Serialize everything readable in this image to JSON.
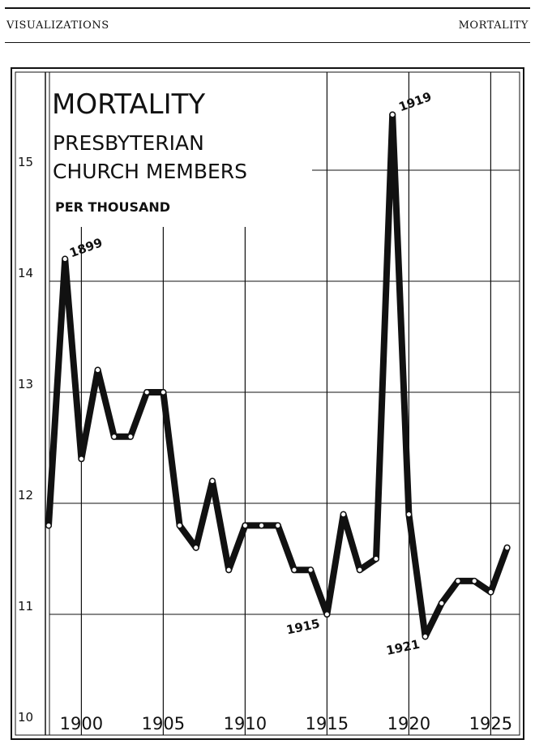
{
  "header": {
    "left": "VISUALIZATIONS",
    "right": "MORTALITY"
  },
  "chart_data": {
    "type": "line",
    "title": "MORTALITY",
    "subtitle_lines": [
      "PRESBYTERIAN",
      "CHURCH MEMBERS"
    ],
    "unit_label": "PER THOUSAND",
    "y_ticks": [
      10,
      11,
      12,
      13,
      14,
      15
    ],
    "y_tick_labels": [
      "10",
      "11",
      "12",
      "13",
      "14",
      "15"
    ],
    "x_ticks": [
      1900,
      1905,
      1910,
      1915,
      1920,
      1925
    ],
    "x_tick_labels": [
      "1900",
      "1905",
      "1910",
      "1915",
      "1920",
      "1925"
    ],
    "xlim": [
      1898,
      1926.5
    ],
    "ylim": [
      10,
      15.6
    ],
    "grid": true,
    "x": [
      1898,
      1899,
      1900,
      1901,
      1902,
      1903,
      1904,
      1905,
      1906,
      1907,
      1908,
      1909,
      1910,
      1911,
      1912,
      1913,
      1914,
      1915,
      1916,
      1917,
      1918,
      1919,
      1920,
      1921,
      1922,
      1923,
      1924,
      1925,
      1926
    ],
    "series": [
      {
        "values": [
          11.8,
          14.2,
          12.4,
          13.2,
          12.6,
          12.6,
          13.0,
          13.0,
          11.8,
          11.6,
          12.2,
          11.4,
          11.8,
          11.8,
          11.8,
          11.4,
          11.4,
          11.0,
          11.9,
          11.4,
          11.5,
          15.5,
          11.9,
          10.8,
          11.1,
          11.3,
          11.3,
          11.2,
          11.6
        ]
      }
    ],
    "annotations": [
      {
        "x": 1899,
        "y": 14.2,
        "text": "1899"
      },
      {
        "x": 1919,
        "y": 15.5,
        "text": "1919"
      },
      {
        "x": 1915,
        "y": 11.0,
        "text": "1915"
      },
      {
        "x": 1921,
        "y": 10.8,
        "text": "1921"
      }
    ]
  }
}
